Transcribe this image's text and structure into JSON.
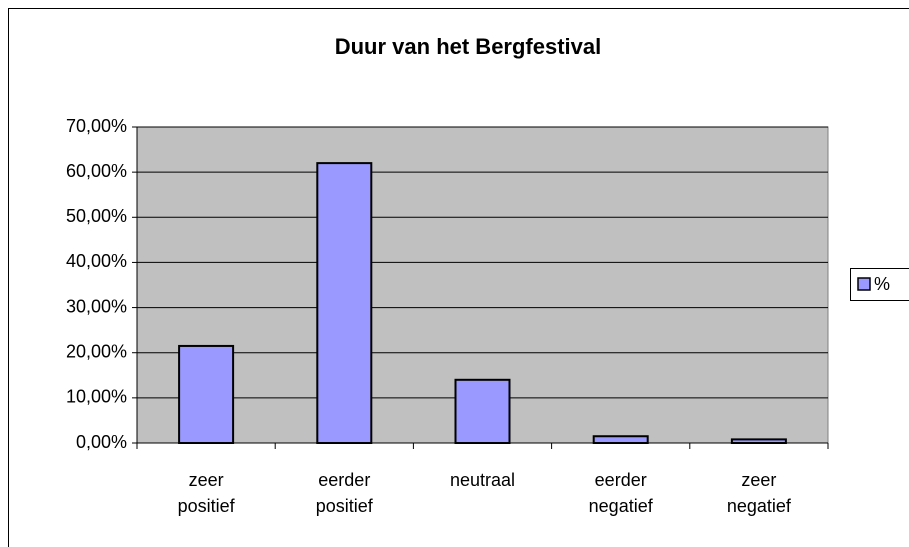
{
  "chart_data": {
    "type": "bar",
    "title": "Duur van het Bergfestival",
    "categories": [
      "zeer positief",
      "eerder positief",
      "neutraal",
      "eerder negatief",
      "zeer negatief"
    ],
    "series": [
      {
        "name": "%",
        "color": "#9999ff",
        "values": [
          21.5,
          62.0,
          14.0,
          1.5,
          0.8
        ]
      }
    ],
    "ylim": [
      0,
      70
    ],
    "yticks": [
      {
        "value": 0,
        "label": "0,00%"
      },
      {
        "value": 10,
        "label": "10,00%"
      },
      {
        "value": 20,
        "label": "20,00%"
      },
      {
        "value": 30,
        "label": "30,00%"
      },
      {
        "value": 40,
        "label": "40,00%"
      },
      {
        "value": 50,
        "label": "50,00%"
      },
      {
        "value": 60,
        "label": "60,00%"
      },
      {
        "value": 70,
        "label": "70,00%"
      }
    ],
    "grid": true,
    "legend": "right",
    "plot_background": "#c0c0c0"
  }
}
